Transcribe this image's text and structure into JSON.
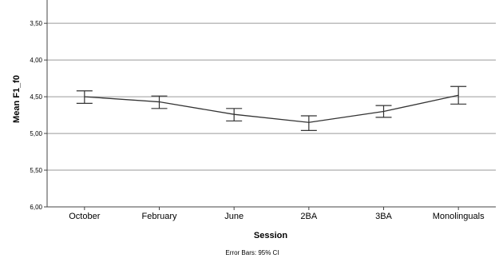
{
  "chart_data": {
    "type": "line",
    "xlabel": "Session",
    "ylabel": "Mean F1_f0",
    "footnote": "Error Bars: 95% CI",
    "categories": [
      "October",
      "February",
      "June",
      "2BA",
      "3BA",
      "Monolinguals"
    ],
    "y_axis": {
      "reversed": true,
      "ylim": [
        3.15,
        6.0
      ],
      "ticks": [
        3.5,
        4.0,
        4.5,
        5.0,
        5.5,
        6.0
      ],
      "tick_labels": [
        "3,50",
        "4,00",
        "4,50",
        "5,00",
        "5,50",
        "6,00"
      ],
      "gridlines": true
    },
    "series": [
      {
        "values": [
          4.5,
          4.57,
          4.74,
          4.85,
          4.7,
          4.48
        ],
        "ci_low": [
          4.42,
          4.49,
          4.66,
          4.76,
          4.62,
          4.36
        ],
        "ci_high": [
          4.59,
          4.66,
          4.83,
          4.96,
          4.78,
          4.6
        ]
      }
    ],
    "colors": {
      "line": "#333333",
      "grid": "#9a9a9a",
      "axis": "#444444"
    }
  }
}
